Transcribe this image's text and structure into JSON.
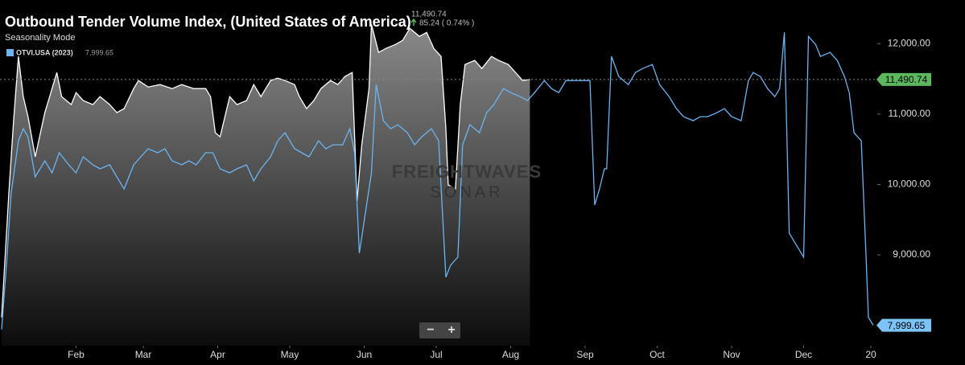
{
  "chart_data": {
    "type": "line",
    "title": "Outbound Tender Volume Index, (United States of America)",
    "subtitle": "Seasonality Mode",
    "legend": {
      "name": "OTVI.USA (2023)",
      "last": "7,999.65"
    },
    "hover": {
      "value": "11,490.74",
      "change": "85.24 ( 0.74% )"
    },
    "watermark": [
      "FREIGHTWAVES",
      "SONAR"
    ],
    "zoom_controls": [
      "−",
      "+"
    ],
    "xlim": [
      1,
      365
    ],
    "ylim": [
      7710,
      12620
    ],
    "xticks": [
      {
        "value": 32,
        "label": "Feb"
      },
      {
        "value": 60,
        "label": "Mar"
      },
      {
        "value": 91,
        "label": "Apr"
      },
      {
        "value": 121,
        "label": "May"
      },
      {
        "value": 152,
        "label": "Jun"
      },
      {
        "value": 182,
        "label": "Jul"
      },
      {
        "value": 213,
        "label": "Aug"
      },
      {
        "value": 244,
        "label": "Sep"
      },
      {
        "value": 274,
        "label": "Oct"
      },
      {
        "value": 305,
        "label": "Nov"
      },
      {
        "value": 335,
        "label": "Dec"
      },
      {
        "value": 363,
        "label": "20"
      }
    ],
    "yticks": [
      {
        "value": 9000,
        "label": "9,000.00"
      },
      {
        "value": 10000,
        "label": "10,000.00"
      },
      {
        "value": 11000,
        "label": "11,000.00"
      },
      {
        "value": 12000,
        "label": "12,000.00"
      }
    ],
    "price_tags": [
      {
        "value": 11490.74,
        "label": "11,490.74",
        "color": "#5cb85c"
      },
      {
        "value": 7999.65,
        "label": "7,999.65",
        "color": "#7cc4f8"
      }
    ],
    "series": [
      {
        "color": "#ffffff",
        "area": true,
        "x": [
          1,
          4,
          6,
          8,
          10,
          12,
          15,
          19,
          21,
          24,
          26,
          30,
          32,
          35,
          39,
          42,
          46,
          49,
          52,
          56,
          58,
          62,
          67,
          72,
          76,
          81,
          86,
          88,
          90,
          92,
          96,
          99,
          103,
          106,
          109,
          113,
          116,
          119,
          123,
          125,
          128,
          131,
          134,
          138,
          141,
          144,
          147,
          149,
          151,
          154,
          155,
          158,
          161,
          165,
          168,
          171,
          175,
          178,
          181,
          184,
          186,
          187,
          190,
          192,
          194,
          198,
          201,
          205,
          208,
          212,
          215,
          218,
          221
        ],
        "values": [
          8113,
          9880,
          10906,
          11818,
          11248,
          10963,
          10393,
          11020,
          11248,
          11590,
          11248,
          11134,
          11305,
          11191,
          11134,
          11248,
          11134,
          11020,
          11077,
          11362,
          11476,
          11384,
          11419,
          11362,
          11419,
          11362,
          11362,
          11248,
          10735,
          10678,
          11248,
          11134,
          11191,
          11419,
          11248,
          11476,
          11510,
          11476,
          11419,
          11248,
          11077,
          11191,
          11362,
          11476,
          11419,
          11533,
          11590,
          9766,
          10564,
          11362,
          12274,
          11875,
          11932,
          11989,
          12046,
          12217,
          12103,
          12160,
          11932,
          11818,
          10792,
          9994,
          9937,
          11134,
          11704,
          11761,
          11647,
          11818,
          11761,
          11704,
          11590,
          11476,
          11490.74
        ]
      },
      {
        "color": "#6ab4f0",
        "area": false,
        "x": [
          1,
          3,
          5,
          8,
          10,
          12,
          15,
          19,
          22,
          25,
          29,
          32,
          35,
          39,
          42,
          46,
          49,
          52,
          56,
          59,
          62,
          66,
          69,
          72,
          76,
          79,
          82,
          86,
          89,
          92,
          96,
          99,
          103,
          106,
          109,
          113,
          116,
          119,
          123,
          126,
          129,
          133,
          136,
          139,
          143,
          146,
          148,
          150,
          153,
          155,
          157,
          160,
          163,
          166,
          170,
          173,
          176,
          180,
          183,
          186,
          188,
          191,
          193,
          196,
          200,
          203,
          206,
          210,
          213,
          217,
          220,
          223,
          227,
          230,
          233,
          236,
          240,
          243,
          246,
          248,
          250,
          252,
          253,
          255,
          258,
          262,
          265,
          268,
          272,
          275,
          279,
          282,
          285,
          289,
          292,
          295,
          299,
          302,
          305,
          309,
          312,
          314,
          317,
          320,
          323,
          325,
          327,
          329,
          332,
          335,
          337,
          340,
          342,
          346,
          349,
          352,
          354,
          356,
          359,
          361,
          362,
          364
        ],
        "values": [
          7942,
          8854,
          9880,
          10621,
          10792,
          10678,
          10108,
          10336,
          10165,
          10450,
          10279,
          10165,
          10393,
          10279,
          10222,
          10279,
          10108,
          9937,
          10279,
          10393,
          10507,
          10450,
          10507,
          10336,
          10279,
          10336,
          10279,
          10450,
          10450,
          10222,
          10165,
          10222,
          10279,
          10051,
          10222,
          10393,
          10621,
          10735,
          10507,
          10450,
          10393,
          10621,
          10507,
          10564,
          10564,
          10792,
          10450,
          9025,
          9709,
          10165,
          11419,
          10906,
          10792,
          10849,
          10735,
          10564,
          10678,
          10792,
          10621,
          8683,
          8854,
          8968,
          10564,
          10849,
          10735,
          11020,
          11134,
          11362,
          11305,
          11248,
          11191,
          11305,
          11476,
          11362,
          11305,
          11476,
          11476,
          11476,
          11476,
          9709,
          9937,
          10222,
          10222,
          11818,
          11533,
          11419,
          11590,
          11647,
          11704,
          11419,
          11248,
          11077,
          10963,
          10906,
          10963,
          10963,
          11020,
          11077,
          10963,
          10906,
          11476,
          11590,
          11533,
          11362,
          11248,
          11362,
          12160,
          9310,
          9139,
          8968,
          12103,
          11989,
          11818,
          11875,
          11761,
          11533,
          11305,
          10735,
          10621,
          8968,
          8113,
          7999.65
        ]
      }
    ]
  }
}
